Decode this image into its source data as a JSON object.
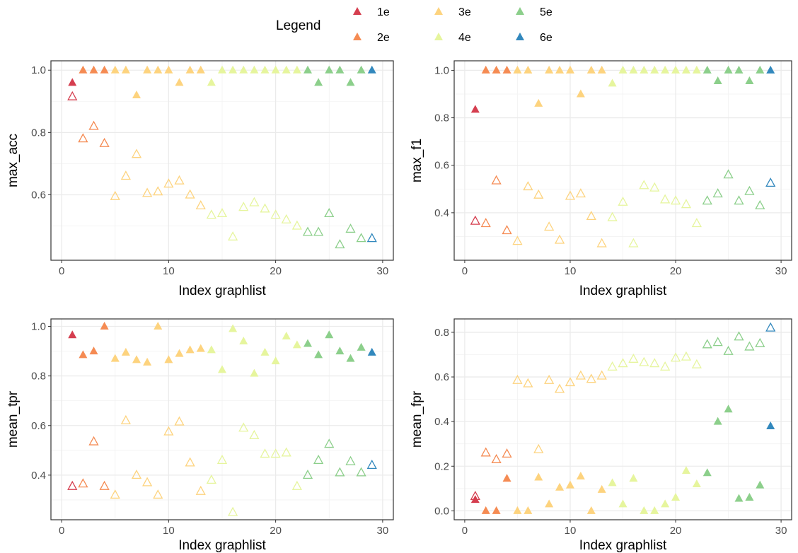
{
  "legend": {
    "title": "Legend",
    "items": [
      {
        "label": "1e",
        "color": "#d53e4f"
      },
      {
        "label": "2e",
        "color": "#f58b53"
      },
      {
        "label": "3e",
        "color": "#fdd37e"
      },
      {
        "label": "4e",
        "color": "#e6f59d"
      },
      {
        "label": "5e",
        "color": "#8ccf8b"
      },
      {
        "label": "6e",
        "color": "#3288bd"
      }
    ]
  },
  "chart_data": [
    {
      "type": "scatter",
      "xlabel": "Index graphlist",
      "ylabel": "max_acc",
      "xlim": [
        -1,
        31
      ],
      "ylim": [
        0.39,
        1.03
      ],
      "xticks": [
        0,
        10,
        20,
        30
      ],
      "yticks": [
        0.6,
        0.8,
        1.0
      ],
      "ytick_labels": [
        "0.6",
        "0.8",
        "1.0"
      ],
      "grid": true,
      "x": [
        1,
        2,
        3,
        4,
        5,
        6,
        7,
        8,
        9,
        10,
        11,
        12,
        13,
        14,
        15,
        16,
        17,
        18,
        19,
        20,
        21,
        22,
        23,
        24,
        25,
        26,
        27,
        28,
        29
      ],
      "group": [
        "1e",
        "2e",
        "2e",
        "2e",
        "3e",
        "3e",
        "3e",
        "3e",
        "3e",
        "3e",
        "3e",
        "3e",
        "3e",
        "4e",
        "4e",
        "4e",
        "4e",
        "4e",
        "4e",
        "4e",
        "4e",
        "4e",
        "5e",
        "5e",
        "5e",
        "5e",
        "5e",
        "5e",
        "6e"
      ],
      "filled": [
        0.96,
        1,
        1,
        1,
        1,
        1,
        0.92,
        1,
        1,
        1,
        0.96,
        1,
        1,
        0.96,
        1,
        1,
        1,
        1,
        1,
        1,
        1,
        1,
        1,
        0.96,
        1,
        1,
        0.96,
        1,
        1
      ],
      "open": [
        0.915,
        0.78,
        0.82,
        0.765,
        0.595,
        0.66,
        0.73,
        0.605,
        0.61,
        0.635,
        0.645,
        0.6,
        0.565,
        0.535,
        0.54,
        0.465,
        0.56,
        0.575,
        0.555,
        0.535,
        0.52,
        0.5,
        0.48,
        0.48,
        0.54,
        0.44,
        0.49,
        0.46,
        0.46
      ]
    },
    {
      "type": "scatter",
      "xlabel": "Index graphlist",
      "ylabel": "max_f1",
      "xlim": [
        -1,
        31
      ],
      "ylim": [
        0.2,
        1.04
      ],
      "xticks": [
        0,
        10,
        20,
        30
      ],
      "yticks": [
        0.4,
        0.6,
        0.8,
        1.0
      ],
      "ytick_labels": [
        "0.4",
        "0.6",
        "0.8",
        "1.0"
      ],
      "grid": true,
      "x": [
        1,
        2,
        3,
        4,
        5,
        6,
        7,
        8,
        9,
        10,
        11,
        12,
        13,
        14,
        15,
        16,
        17,
        18,
        19,
        20,
        21,
        22,
        23,
        24,
        25,
        26,
        27,
        28,
        29
      ],
      "group": [
        "1e",
        "2e",
        "2e",
        "2e",
        "3e",
        "3e",
        "3e",
        "3e",
        "3e",
        "3e",
        "3e",
        "3e",
        "3e",
        "4e",
        "4e",
        "4e",
        "4e",
        "4e",
        "4e",
        "4e",
        "4e",
        "4e",
        "5e",
        "5e",
        "5e",
        "5e",
        "5e",
        "5e",
        "6e"
      ],
      "filled": [
        0.835,
        1,
        1,
        1,
        1,
        1,
        0.86,
        1,
        1,
        1,
        0.9,
        1,
        1,
        0.945,
        1,
        1,
        1,
        1,
        1,
        1,
        1,
        1,
        1,
        0.955,
        1,
        1,
        0.955,
        1,
        1
      ],
      "open": [
        0.365,
        0.355,
        0.535,
        0.325,
        0.28,
        0.51,
        0.475,
        0.34,
        0.285,
        0.47,
        0.48,
        0.385,
        0.27,
        0.38,
        0.445,
        0.27,
        0.515,
        0.505,
        0.455,
        0.45,
        0.435,
        0.355,
        0.45,
        0.48,
        0.56,
        0.45,
        0.49,
        0.43,
        0.525
      ]
    },
    {
      "type": "scatter",
      "xlabel": "Index graphlist",
      "ylabel": "mean_tpr",
      "xlim": [
        -1,
        31
      ],
      "ylim": [
        0.22,
        1.03
      ],
      "xticks": [
        0,
        10,
        20,
        30
      ],
      "yticks": [
        0.4,
        0.6,
        0.8,
        1.0
      ],
      "ytick_labels": [
        "0.4",
        "0.6",
        "0.8",
        "1.0"
      ],
      "grid": true,
      "x": [
        1,
        2,
        3,
        4,
        5,
        6,
        7,
        8,
        9,
        10,
        11,
        12,
        13,
        14,
        15,
        16,
        17,
        18,
        19,
        20,
        21,
        22,
        23,
        24,
        25,
        26,
        27,
        28,
        29
      ],
      "group": [
        "1e",
        "2e",
        "2e",
        "2e",
        "3e",
        "3e",
        "3e",
        "3e",
        "3e",
        "3e",
        "3e",
        "3e",
        "3e",
        "4e",
        "4e",
        "4e",
        "4e",
        "4e",
        "4e",
        "4e",
        "4e",
        "4e",
        "5e",
        "5e",
        "5e",
        "5e",
        "5e",
        "5e",
        "6e"
      ],
      "filled": [
        0.965,
        0.885,
        0.9,
        1.0,
        0.87,
        0.895,
        0.865,
        0.855,
        1.0,
        0.865,
        0.89,
        0.905,
        0.91,
        0.905,
        0.825,
        0.99,
        0.94,
        0.81,
        0.895,
        0.86,
        0.96,
        0.925,
        0.93,
        0.885,
        0.965,
        0.9,
        0.87,
        0.915,
        0.895
      ],
      "open": [
        0.355,
        0.365,
        0.535,
        0.355,
        0.32,
        0.62,
        0.4,
        0.37,
        0.32,
        0.575,
        0.615,
        0.45,
        0.335,
        0.38,
        0.46,
        0.25,
        0.59,
        0.56,
        0.485,
        0.485,
        0.49,
        0.355,
        0.4,
        0.46,
        0.525,
        0.41,
        0.455,
        0.41,
        0.44
      ]
    },
    {
      "type": "scatter",
      "xlabel": "Index graphlist",
      "ylabel": "mean_fpr",
      "xlim": [
        -1,
        31
      ],
      "ylim": [
        -0.04,
        0.86
      ],
      "xticks": [
        0,
        10,
        20,
        30
      ],
      "yticks": [
        0.0,
        0.2,
        0.4,
        0.6,
        0.8
      ],
      "ytick_labels": [
        "0.0",
        "0.2",
        "0.4",
        "0.6",
        "0.8"
      ],
      "grid": true,
      "x": [
        1,
        2,
        3,
        4,
        5,
        6,
        7,
        8,
        9,
        10,
        11,
        12,
        13,
        14,
        15,
        16,
        17,
        18,
        19,
        20,
        21,
        22,
        23,
        24,
        25,
        26,
        27,
        28,
        29
      ],
      "group": [
        "1e",
        "2e",
        "2e",
        "2e",
        "3e",
        "3e",
        "3e",
        "3e",
        "3e",
        "3e",
        "3e",
        "3e",
        "3e",
        "4e",
        "4e",
        "4e",
        "4e",
        "4e",
        "4e",
        "4e",
        "4e",
        "4e",
        "5e",
        "5e",
        "5e",
        "5e",
        "5e",
        "5e",
        "6e"
      ],
      "filled": [
        0.05,
        0.0,
        0.0,
        0.145,
        0.0,
        0.0,
        0.15,
        0.03,
        0.105,
        0.115,
        0.155,
        0.0,
        0.095,
        0.125,
        0.03,
        0.145,
        0.0,
        0.0,
        0.03,
        0.06,
        0.18,
        0.12,
        0.17,
        0.4,
        0.455,
        0.055,
        0.06,
        0.115,
        0.38
      ],
      "open": [
        0.065,
        0.26,
        0.23,
        0.255,
        0.585,
        0.57,
        0.275,
        0.585,
        0.545,
        0.575,
        0.605,
        0.59,
        0.605,
        0.645,
        0.66,
        0.68,
        0.665,
        0.66,
        0.645,
        0.685,
        0.69,
        0.655,
        0.745,
        0.755,
        0.715,
        0.78,
        0.735,
        0.75,
        0.82
      ]
    }
  ]
}
